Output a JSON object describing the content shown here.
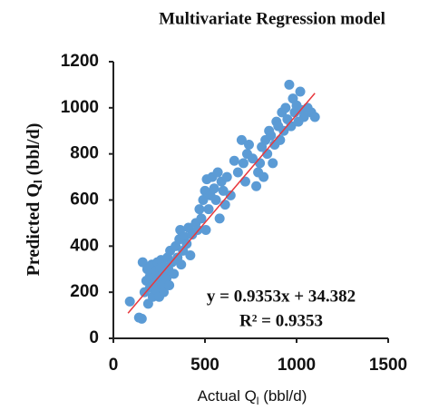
{
  "chart_data": {
    "type": "scatter",
    "title": "Multivariate Regression model",
    "xlabel": {
      "main": "Actual Q",
      "sub": "l",
      "unit": " (bbl/d)"
    },
    "ylabel": {
      "main": "Predicted Q",
      "sub": "l",
      "unit": " (bbl/d)"
    },
    "xlim": [
      0,
      1500
    ],
    "ylim": [
      0,
      1200
    ],
    "xticks": [
      0,
      500,
      1000,
      1500
    ],
    "yticks": [
      0,
      200,
      400,
      600,
      800,
      1000,
      1200
    ],
    "color": "#5b9bd5",
    "x": [
      90,
      140,
      155,
      160,
      170,
      180,
      185,
      190,
      200,
      200,
      210,
      215,
      220,
      230,
      235,
      240,
      245,
      250,
      255,
      260,
      265,
      270,
      275,
      280,
      290,
      295,
      300,
      305,
      310,
      320,
      330,
      340,
      350,
      360,
      365,
      370,
      380,
      390,
      400,
      410,
      420,
      430,
      450,
      460,
      470,
      480,
      490,
      500,
      505,
      510,
      520,
      530,
      540,
      550,
      560,
      570,
      580,
      590,
      600,
      610,
      620,
      640,
      660,
      680,
      700,
      710,
      720,
      730,
      740,
      760,
      780,
      790,
      800,
      810,
      820,
      830,
      840,
      850,
      860,
      870,
      880,
      890,
      900,
      910,
      920,
      930,
      940,
      950,
      960,
      970,
      980,
      990,
      1000,
      1010,
      1020,
      1030,
      1040,
      1060,
      1080,
      1100
    ],
    "values": [
      160,
      90,
      85,
      330,
      200,
      250,
      300,
      150,
      270,
      220,
      320,
      180,
      240,
      290,
      210,
      330,
      260,
      180,
      300,
      340,
      230,
      280,
      200,
      310,
      260,
      350,
      300,
      230,
      380,
      330,
      280,
      400,
      350,
      430,
      470,
      320,
      380,
      440,
      410,
      480,
      360,
      450,
      500,
      470,
      560,
      520,
      600,
      640,
      470,
      690,
      560,
      620,
      700,
      650,
      600,
      720,
      520,
      680,
      640,
      580,
      700,
      620,
      770,
      720,
      860,
      760,
      680,
      800,
      840,
      780,
      660,
      720,
      760,
      830,
      700,
      860,
      800,
      900,
      880,
      760,
      840,
      940,
      920,
      860,
      980,
      900,
      1000,
      950,
      1100,
      920,
      1040,
      980,
      1010,
      940,
      1070,
      990,
      960,
      1000,
      980,
      960
    ],
    "trendline": {
      "slope": 0.9353,
      "intercept": 34.382,
      "x": [
        80,
        1100
      ],
      "color": "#e8383d"
    },
    "annotations": [
      "y = 0.9353x + 34.382",
      "R² = 0.9353"
    ]
  }
}
